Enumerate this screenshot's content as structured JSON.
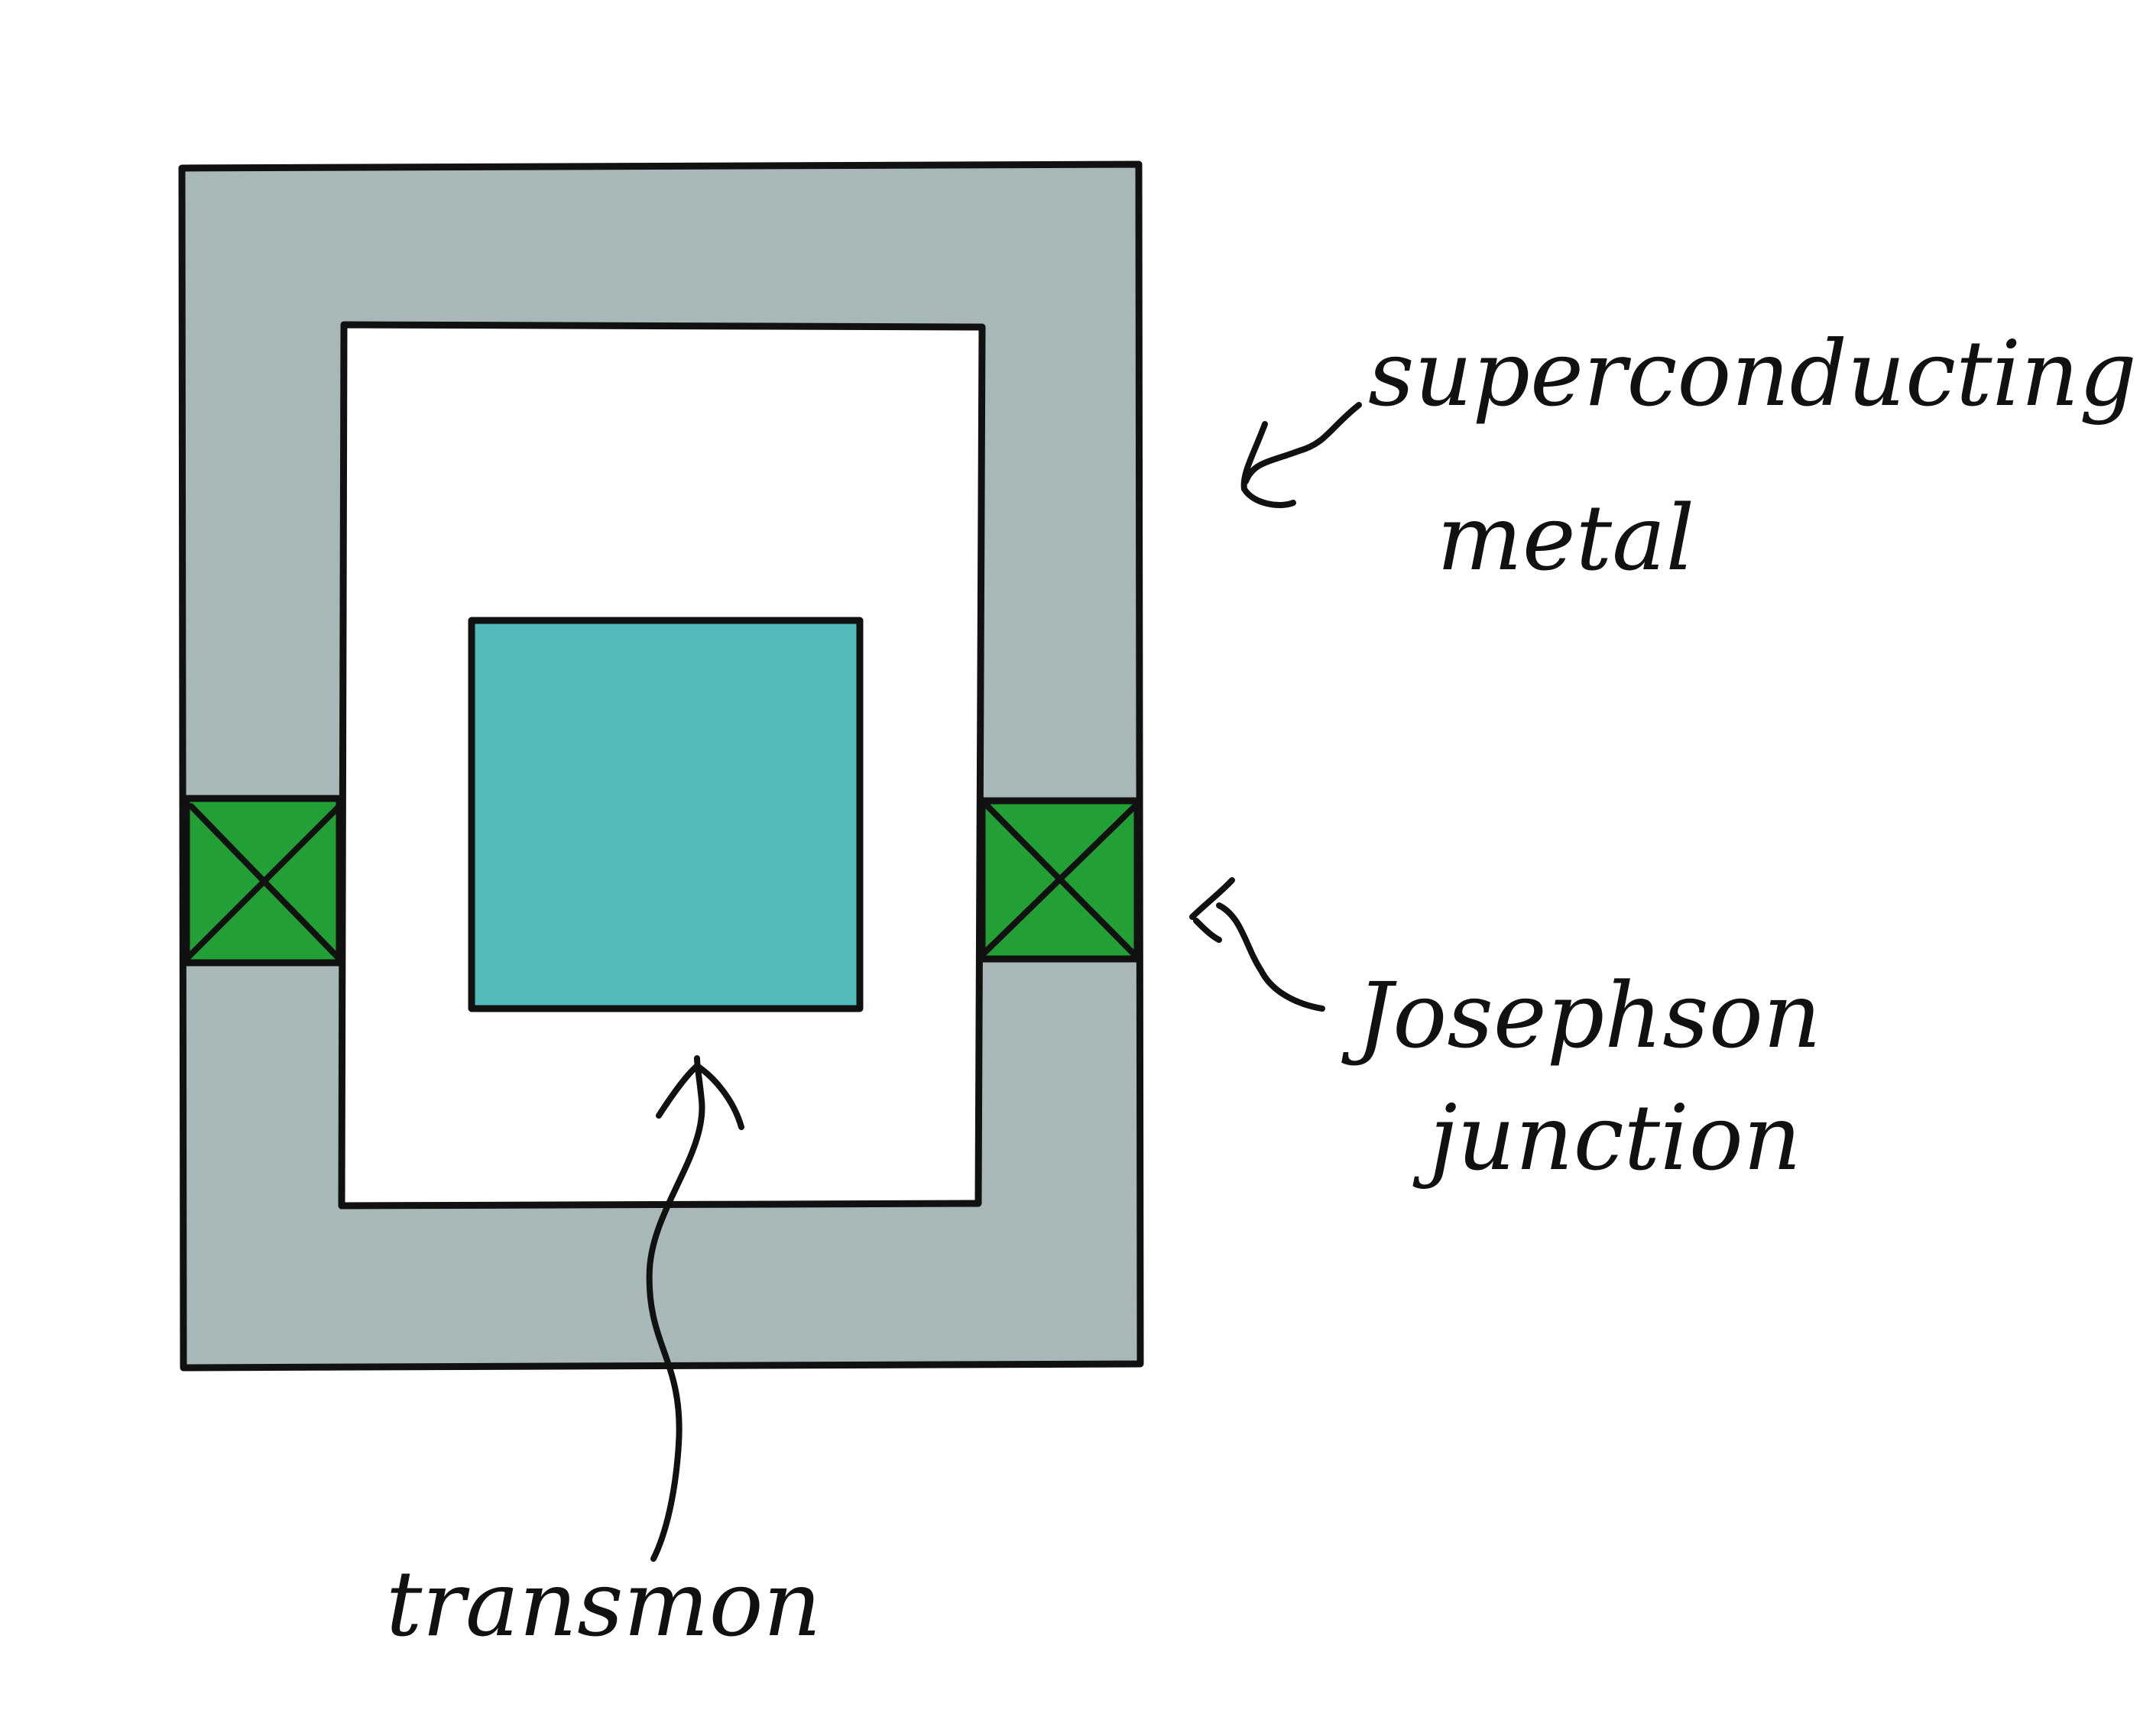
{
  "colors": {
    "metal": "#a8b8b8",
    "transmon": "#52baba",
    "junction": "#22a035",
    "stroke": "#111111",
    "background": "#ffffff"
  },
  "labels": {
    "superconducting_line1": "superconducting",
    "superconducting_line2": "metal",
    "josephson_line1": "Josephson",
    "josephson_line2": "junction",
    "transmon": "transmon"
  }
}
